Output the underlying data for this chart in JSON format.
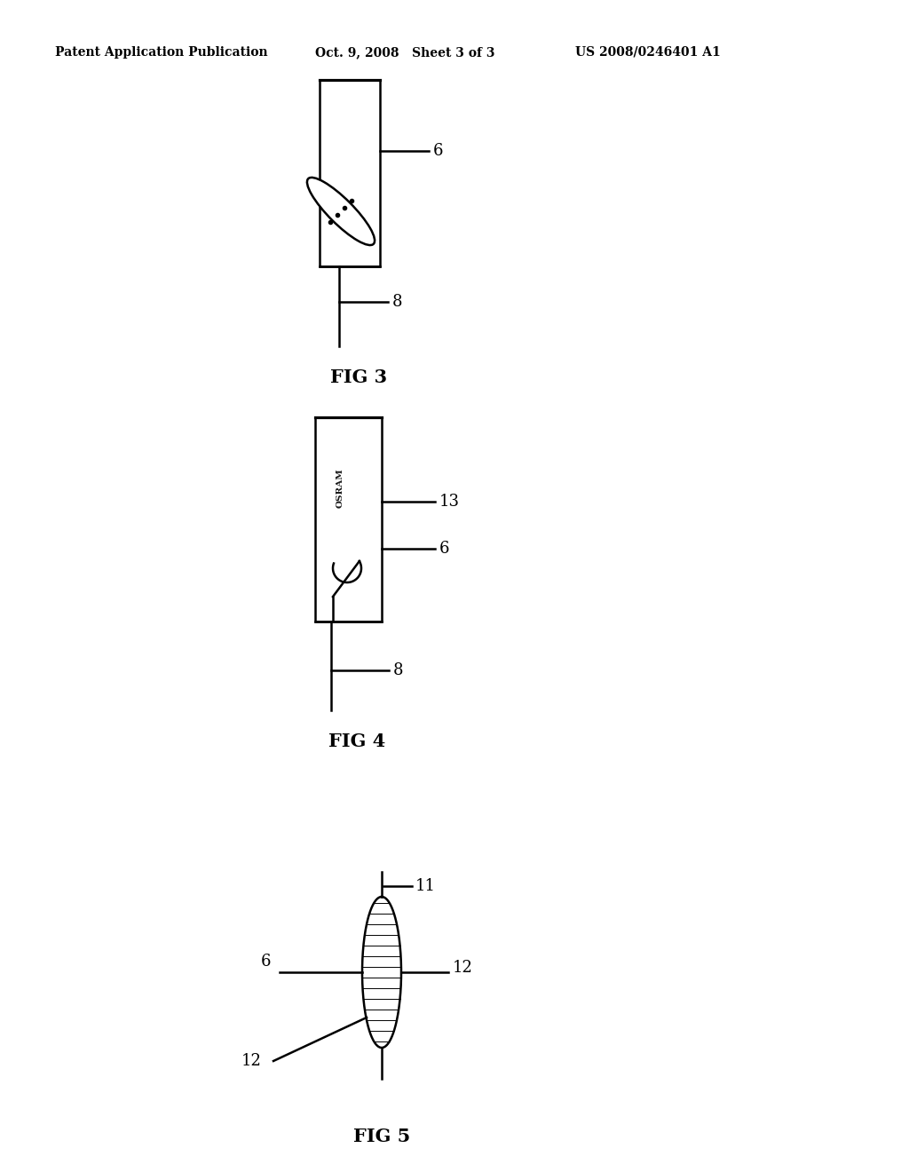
{
  "bg_color": "#ffffff",
  "line_color": "#000000",
  "header_left": "Patent Application Publication",
  "header_mid": "Oct. 9, 2008   Sheet 3 of 3",
  "header_right": "US 2008/0246401 A1",
  "fig3_label": "FIG 3",
  "fig4_label": "FIG 4",
  "fig5_label": "FIG 5",
  "fig_label_fontsize": 15,
  "header_fontsize": 10,
  "annotation_fontsize": 13
}
